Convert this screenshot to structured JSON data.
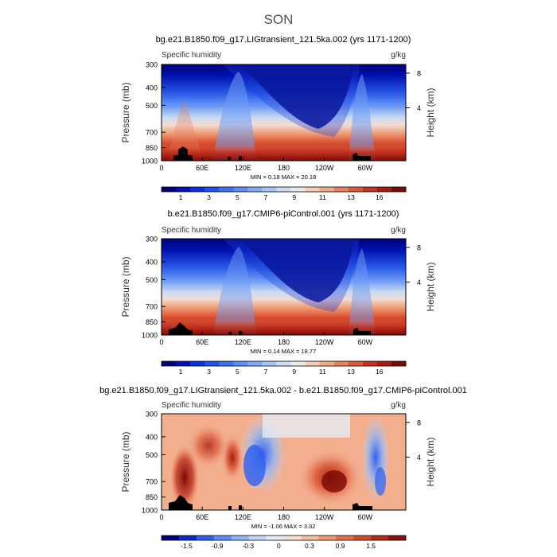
{
  "figure_title": "SON",
  "colors": {
    "abs_scale": [
      "#00007a",
      "#0010b8",
      "#0a2fe0",
      "#2050f0",
      "#3e70f4",
      "#5d8ef6",
      "#80aaf6",
      "#a6c5f4",
      "#cadcf0",
      "#eeeaea",
      "#f6ccba",
      "#f0aa8a",
      "#e8825e",
      "#dc5a3a",
      "#c83220",
      "#a81a10",
      "#7a0a06"
    ],
    "diff_scale": [
      "#00007a",
      "#0a2ac8",
      "#2f5ff0",
      "#5d8ef6",
      "#8fb6f6",
      "#c0d8f6",
      "#e6ecf4",
      "#fae2d2",
      "#f6bfa2",
      "#f09a76",
      "#e6704e",
      "#d44a2c",
      "#b82a16",
      "#8a1208"
    ]
  },
  "chart_data": [
    {
      "type": "heatmap",
      "title": "bg.e21.B1850.f09_g17.LIGtransient_121.5ka.002 (yrs 1171-1200)",
      "subtitle_left": "Specific humidity",
      "subtitle_right": "g/kg",
      "ylabel": "Pressure (mb)",
      "ylabel_right": "Height (km)",
      "yticks": [
        "300",
        "400",
        "500",
        "700",
        "850",
        "1000"
      ],
      "yticks_right": [
        "8",
        "4"
      ],
      "xticks": [
        "0",
        "60E",
        "120E",
        "180",
        "120W",
        "60W"
      ],
      "stats": "MIN =    0.18   MAX =   20.18",
      "colorbar_labels": [
        "1",
        "3",
        "5",
        "7",
        "9",
        "11",
        "13",
        "16"
      ]
    },
    {
      "type": "heatmap",
      "title": "b.e21.B1850.f09_g17.CMIP6-piControl.001 (yrs 1171-1200)",
      "subtitle_left": "Specific humidity",
      "subtitle_right": "g/kg",
      "ylabel": "Pressure (mb)",
      "ylabel_right": "Height (km)",
      "yticks": [
        "300",
        "400",
        "500",
        "700",
        "850",
        "1000"
      ],
      "yticks_right": [
        "8",
        "4"
      ],
      "xticks": [
        "0",
        "60E",
        "120E",
        "180",
        "120W",
        "60W"
      ],
      "stats": "MIN =    0.14   MAX =   18.77",
      "colorbar_labels": [
        "1",
        "3",
        "5",
        "7",
        "9",
        "11",
        "13",
        "16"
      ]
    },
    {
      "type": "heatmap",
      "title": "bg.e21.B1850.f09_g17.LIGtransient_121.5ka.002 - b.e21.B1850.f09_g17.CMIP6-piControl.001",
      "subtitle_left": "Specific humidity",
      "subtitle_right": "g/kg",
      "ylabel": "Pressure (mb)",
      "ylabel_right": "Height (km)",
      "yticks": [
        "300",
        "400",
        "500",
        "700",
        "850",
        "1000"
      ],
      "yticks_right": [
        "8",
        "4"
      ],
      "xticks": [
        "0",
        "60E",
        "120E",
        "180",
        "120W",
        "60W"
      ],
      "stats": "MIN =   -1.06   MAX =    3.02",
      "colorbar_labels": [
        "-1.5",
        "-0.9",
        "-0.3",
        "0",
        "0.3",
        "0.9",
        "1.5"
      ]
    }
  ]
}
